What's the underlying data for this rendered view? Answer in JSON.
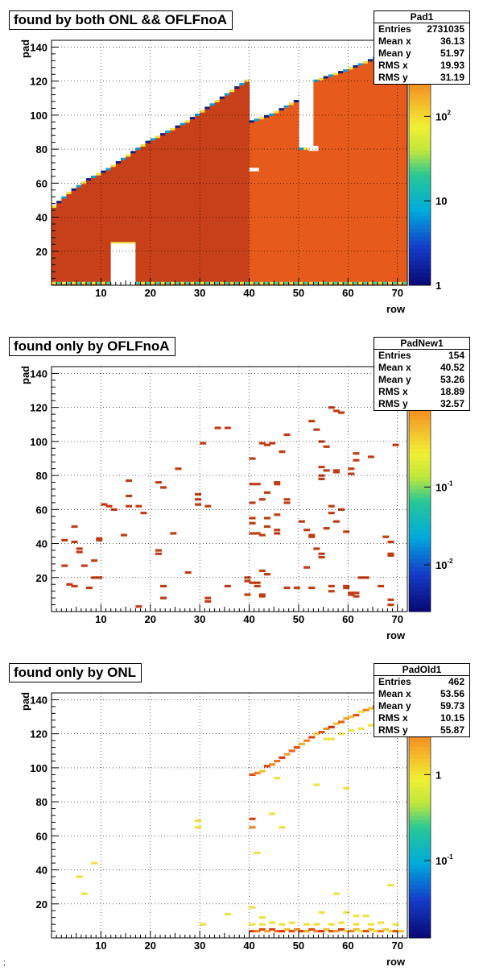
{
  "chart_data": [
    {
      "type": "heatmap",
      "title": "found by both ONL && OFLFnoA",
      "xlabel": "row",
      "ylabel": "pad",
      "xlim": [
        0,
        72
      ],
      "ylim": [
        0,
        144
      ],
      "x_ticks": [
        10,
        20,
        30,
        40,
        50,
        60,
        70
      ],
      "y_ticks": [
        20,
        40,
        60,
        80,
        100,
        120,
        140
      ],
      "color_scale": "log",
      "color_ticks": [
        {
          "label": "1",
          "value": 1
        },
        {
          "label": "10",
          "value": 10
        },
        {
          "label": "10",
          "sup": "2",
          "value": 100
        }
      ],
      "grid": true,
      "stats": {
        "name": "Pad1",
        "rows": [
          {
            "label": "Entries",
            "value": "2731035"
          },
          {
            "label": "Mean x",
            "value": "36.13"
          },
          {
            "label": "Mean y",
            "value": "51.97"
          },
          {
            "label": "RMS x",
            "value": "19.93"
          },
          {
            "label": "RMS y",
            "value": "31.19"
          }
        ]
      },
      "band": {
        "upper_edge": [
          [
            1,
            46
          ],
          [
            4,
            54
          ],
          [
            8,
            62
          ],
          [
            12,
            68
          ],
          [
            16,
            76
          ],
          [
            20,
            84
          ],
          [
            24,
            90
          ],
          [
            28,
            96
          ],
          [
            32,
            104
          ],
          [
            36,
            112
          ],
          [
            40,
            120
          ],
          [
            41,
            96
          ],
          [
            45,
            100
          ],
          [
            50,
            108
          ],
          [
            51,
            80
          ],
          [
            53,
            80
          ],
          [
            54,
            120
          ],
          [
            60,
            126
          ],
          [
            65,
            132
          ],
          [
            70,
            138
          ],
          [
            72,
            142
          ]
        ],
        "low_level_blocks": [
          [
            12,
            17,
            0,
            25
          ]
        ],
        "holes": [
          [
            40,
            42,
            67,
            69
          ],
          [
            52,
            54,
            79,
            82
          ]
        ]
      }
    },
    {
      "type": "heatmap",
      "title": "found only by OFLFnoA",
      "xlabel": "row",
      "ylabel": "pad",
      "xlim": [
        0,
        72
      ],
      "ylim": [
        0,
        144
      ],
      "x_ticks": [
        10,
        20,
        30,
        40,
        50,
        60,
        70
      ],
      "y_ticks": [
        20,
        40,
        60,
        80,
        100,
        120,
        140
      ],
      "color_scale": "log",
      "color_ticks": [
        {
          "label": "10",
          "sup": "-2",
          "value": 0.01
        },
        {
          "label": "10",
          "sup": "-1",
          "value": 0.1
        }
      ],
      "grid": true,
      "stats": {
        "name": "PadNew1",
        "rows": [
          {
            "label": "Entries",
            "value": "154"
          },
          {
            "label": "Mean x",
            "value": "40.52"
          },
          {
            "label": "Mean y",
            "value": "53.26"
          },
          {
            "label": "RMS x",
            "value": "18.89"
          },
          {
            "label": "RMS y",
            "value": "32.57"
          }
        ]
      },
      "points": [
        [
          34,
          108
        ],
        [
          36,
          108
        ],
        [
          31,
          99
        ],
        [
          43,
          99
        ],
        [
          44,
          98
        ],
        [
          45,
          99
        ],
        [
          47,
          94
        ],
        [
          48,
          104
        ],
        [
          53,
          112
        ],
        [
          54,
          107
        ],
        [
          55,
          100
        ],
        [
          56,
          97
        ],
        [
          57,
          120
        ],
        [
          58,
          118
        ],
        [
          59,
          117
        ],
        [
          62,
          93
        ],
        [
          65,
          91
        ],
        [
          70,
          98
        ],
        [
          16,
          77
        ],
        [
          22,
          76
        ],
        [
          23,
          73
        ],
        [
          26,
          84
        ],
        [
          30,
          69
        ],
        [
          30,
          66
        ],
        [
          30,
          63
        ],
        [
          32,
          62
        ],
        [
          11,
          63
        ],
        [
          12,
          62
        ],
        [
          13,
          60
        ],
        [
          16,
          68
        ],
        [
          16,
          62
        ],
        [
          18,
          62
        ],
        [
          19,
          58
        ],
        [
          15,
          45
        ],
        [
          10,
          43
        ],
        [
          10,
          42
        ],
        [
          5,
          50
        ],
        [
          5,
          41
        ],
        [
          6,
          37
        ],
        [
          6,
          35
        ],
        [
          3,
          42
        ],
        [
          3,
          27
        ],
        [
          7,
          27
        ],
        [
          9,
          30
        ],
        [
          9,
          20
        ],
        [
          10,
          20
        ],
        [
          4,
          16
        ],
        [
          5,
          15
        ],
        [
          8,
          14
        ],
        [
          18,
          3
        ],
        [
          23,
          15
        ],
        [
          23,
          8
        ],
        [
          32,
          6
        ],
        [
          32,
          8
        ],
        [
          36,
          15
        ],
        [
          22,
          36
        ],
        [
          22,
          34
        ],
        [
          25,
          46
        ],
        [
          28,
          23
        ],
        [
          41,
          90
        ],
        [
          41,
          75
        ],
        [
          43,
          66
        ],
        [
          41,
          64
        ],
        [
          41,
          55
        ],
        [
          41,
          52
        ],
        [
          44,
          55
        ],
        [
          46,
          57
        ],
        [
          42,
          46
        ],
        [
          41,
          46
        ],
        [
          46,
          46
        ],
        [
          44,
          50
        ],
        [
          46,
          48
        ],
        [
          51,
          53
        ],
        [
          52,
          48
        ],
        [
          53,
          44
        ],
        [
          53,
          45
        ],
        [
          54,
          37
        ],
        [
          55,
          32
        ],
        [
          55,
          34
        ],
        [
          56,
          49
        ],
        [
          57,
          58
        ],
        [
          57,
          62
        ],
        [
          59,
          60
        ],
        [
          59,
          60
        ],
        [
          58,
          53
        ],
        [
          60,
          47
        ],
        [
          55,
          85
        ],
        [
          55,
          80
        ],
        [
          55,
          78
        ],
        [
          56,
          83
        ],
        [
          58,
          83
        ],
        [
          58,
          82
        ],
        [
          61,
          81
        ],
        [
          61,
          84
        ],
        [
          62,
          89
        ],
        [
          48,
          66
        ],
        [
          48,
          64
        ],
        [
          46,
          76
        ],
        [
          46,
          75
        ],
        [
          44,
          70
        ],
        [
          42,
          75
        ],
        [
          43,
          45
        ],
        [
          43,
          24
        ],
        [
          44,
          22
        ],
        [
          40,
          20
        ],
        [
          40,
          18
        ],
        [
          41,
          17
        ],
        [
          42,
          15
        ],
        [
          43,
          10
        ],
        [
          43,
          9
        ],
        [
          42,
          17
        ],
        [
          40,
          10
        ],
        [
          48,
          14
        ],
        [
          50,
          14
        ],
        [
          52,
          26
        ],
        [
          53,
          14
        ],
        [
          57,
          15
        ],
        [
          57,
          12
        ],
        [
          60,
          15
        ],
        [
          60,
          14
        ],
        [
          61,
          10
        ],
        [
          61,
          11
        ],
        [
          62,
          11
        ],
        [
          62,
          9
        ],
        [
          63,
          20
        ],
        [
          64,
          20
        ],
        [
          67,
          15
        ],
        [
          69,
          41
        ],
        [
          69,
          33
        ],
        [
          69,
          34
        ],
        [
          68,
          44
        ],
        [
          69,
          7
        ],
        [
          69,
          4
        ]
      ]
    },
    {
      "type": "heatmap",
      "title": "found only by ONL",
      "xlabel": "row",
      "ylabel": "pad",
      "xlim": [
        0,
        72
      ],
      "ylim": [
        0,
        144
      ],
      "x_ticks": [
        10,
        20,
        30,
        40,
        50,
        60,
        70
      ],
      "y_ticks": [
        20,
        40,
        60,
        80,
        100,
        120,
        140
      ],
      "color_scale": "log",
      "color_ticks": [
        {
          "label": "10",
          "sup": "-1",
          "value": 0.1
        },
        {
          "label": "1",
          "value": 1
        }
      ],
      "grid": true,
      "stats": {
        "name": "PadOld1",
        "rows": [
          {
            "label": "Entries",
            "value": "462"
          },
          {
            "label": "Mean x",
            "value": "53.56"
          },
          {
            "label": "Mean y",
            "value": "59.73"
          },
          {
            "label": "RMS x",
            "value": "10.15"
          },
          {
            "label": "RMS y",
            "value": "55.87"
          }
        ]
      },
      "points": [
        [
          41,
          96,
          "#e05010"
        ],
        [
          42,
          97,
          "#f08020"
        ],
        [
          43,
          98,
          "#f0c030"
        ],
        [
          44,
          101,
          "#e04010"
        ],
        [
          45,
          102,
          "#f09020"
        ],
        [
          46,
          104,
          "#f07020"
        ],
        [
          47,
          106,
          "#e03010"
        ],
        [
          48,
          108,
          "#f0a030"
        ],
        [
          49,
          110,
          "#f06020"
        ],
        [
          50,
          112,
          "#e05010"
        ],
        [
          51,
          114,
          "#f0b030"
        ],
        [
          52,
          116,
          "#f08020"
        ],
        [
          53,
          118,
          "#e04010"
        ],
        [
          54,
          120,
          "#f0d040"
        ],
        [
          55,
          121,
          "#e05010"
        ],
        [
          56,
          123,
          "#f09020"
        ],
        [
          57,
          124,
          "#c03010"
        ],
        [
          58,
          126,
          "#f0c030"
        ],
        [
          59,
          127,
          "#e06010"
        ],
        [
          60,
          129,
          "#f0a030"
        ],
        [
          61,
          130,
          "#f0c040"
        ],
        [
          62,
          131,
          "#e05010"
        ],
        [
          63,
          133,
          "#f0e040"
        ],
        [
          64,
          134,
          "#f08020"
        ],
        [
          65,
          135,
          "#f0c030"
        ],
        [
          66,
          136,
          "#e04010"
        ],
        [
          67,
          138,
          "#f0a030"
        ],
        [
          68,
          139,
          "#f0d040"
        ],
        [
          69,
          140,
          "#e05010"
        ],
        [
          70,
          141,
          "#f0c030"
        ],
        [
          56,
          117,
          "#f0e040"
        ],
        [
          57,
          117,
          "#f0e040"
        ],
        [
          59,
          120,
          "#f0e040"
        ],
        [
          61,
          122,
          "#f0e040"
        ],
        [
          63,
          123,
          "#f0e040"
        ],
        [
          65,
          125,
          "#f0e040"
        ],
        [
          67,
          127,
          "#f0e040"
        ],
        [
          46,
          94,
          "#f0e040"
        ],
        [
          54,
          90,
          "#f0e040"
        ],
        [
          60,
          88,
          "#f0e040"
        ],
        [
          41,
          70,
          "#e04010"
        ],
        [
          41,
          65,
          "#f08020"
        ],
        [
          45,
          73,
          "#f0e040"
        ],
        [
          47,
          65,
          "#f0e040"
        ],
        [
          42,
          50,
          "#f0e040"
        ],
        [
          30,
          69,
          "#f0e040"
        ],
        [
          30,
          65,
          "#f0e040"
        ],
        [
          9,
          44,
          "#f0e040"
        ],
        [
          6,
          36,
          "#f0e040"
        ],
        [
          7,
          26,
          "#f0e040"
        ],
        [
          36,
          14,
          "#f0e040"
        ],
        [
          31,
          8,
          "#f0e040"
        ],
        [
          58,
          26,
          "#f0e040"
        ],
        [
          69,
          31,
          "#f0e040"
        ],
        [
          55,
          15,
          "#f0e040"
        ],
        [
          60,
          15,
          "#f0e040"
        ],
        [
          62,
          13,
          "#f0e040"
        ],
        [
          64,
          13,
          "#f0e040"
        ],
        [
          41,
          4,
          "#e04010"
        ],
        [
          42,
          4,
          "#f08020"
        ],
        [
          43,
          5,
          "#e05010"
        ],
        [
          44,
          4,
          "#f0a030"
        ],
        [
          45,
          5,
          "#e04010"
        ],
        [
          46,
          4,
          "#f07020"
        ],
        [
          47,
          4,
          "#e03010"
        ],
        [
          48,
          5,
          "#f0c030"
        ],
        [
          49,
          4,
          "#e05010"
        ],
        [
          50,
          5,
          "#f09020"
        ],
        [
          51,
          4,
          "#e04010"
        ],
        [
          52,
          4,
          "#f0b030"
        ],
        [
          53,
          5,
          "#e05010"
        ],
        [
          54,
          4,
          "#f08020"
        ],
        [
          55,
          4,
          "#e03010"
        ],
        [
          56,
          5,
          "#f0c030"
        ],
        [
          57,
          4,
          "#e05010"
        ],
        [
          58,
          4,
          "#f0a030"
        ],
        [
          59,
          5,
          "#e04010"
        ],
        [
          60,
          4,
          "#f0d040"
        ],
        [
          61,
          4,
          "#f08020"
        ],
        [
          62,
          5,
          "#f0c030"
        ],
        [
          63,
          4,
          "#f0e040"
        ],
        [
          64,
          4,
          "#e05010"
        ],
        [
          65,
          5,
          "#f0c030"
        ],
        [
          66,
          4,
          "#f0e040"
        ],
        [
          67,
          4,
          "#f08020"
        ],
        [
          68,
          5,
          "#f0d040"
        ],
        [
          69,
          4,
          "#f0e040"
        ],
        [
          70,
          4,
          "#e05010"
        ],
        [
          71,
          4,
          "#f0c030"
        ],
        [
          41,
          8,
          "#f0e040"
        ],
        [
          43,
          8,
          "#f0e040"
        ],
        [
          45,
          9,
          "#f0e040"
        ],
        [
          47,
          8,
          "#f0e040"
        ],
        [
          49,
          9,
          "#f0e040"
        ],
        [
          52,
          8,
          "#f0e040"
        ],
        [
          54,
          8,
          "#f0e040"
        ],
        [
          57,
          8,
          "#f0e040"
        ],
        [
          59,
          9,
          "#f0e040"
        ],
        [
          62,
          8,
          "#f0e040"
        ],
        [
          65,
          8,
          "#f0e040"
        ],
        [
          67,
          9,
          "#f0e040"
        ],
        [
          70,
          8,
          "#f0e040"
        ],
        [
          41,
          18,
          "#f0e040"
        ],
        [
          43,
          12,
          "#f0e040"
        ]
      ]
    }
  ],
  "stray_text": ";"
}
